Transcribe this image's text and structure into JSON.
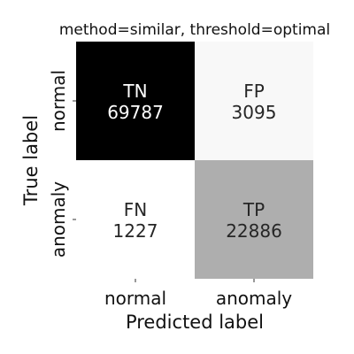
{
  "chart_data": {
    "type": "heatmap",
    "title": "method=similar, threshold=optimal",
    "xlabel": "Predicted label",
    "ylabel": "True label",
    "x_categories": [
      "normal",
      "anomaly"
    ],
    "y_categories": [
      "normal",
      "anomaly"
    ],
    "cells": [
      [
        {
          "label": "TN",
          "value": 69787
        },
        {
          "label": "FP",
          "value": 3095
        }
      ],
      [
        {
          "label": "FN",
          "value": 1227
        },
        {
          "label": "TP",
          "value": 22886
        }
      ]
    ],
    "colormap": "greys",
    "colorbar": false,
    "grid": false
  }
}
